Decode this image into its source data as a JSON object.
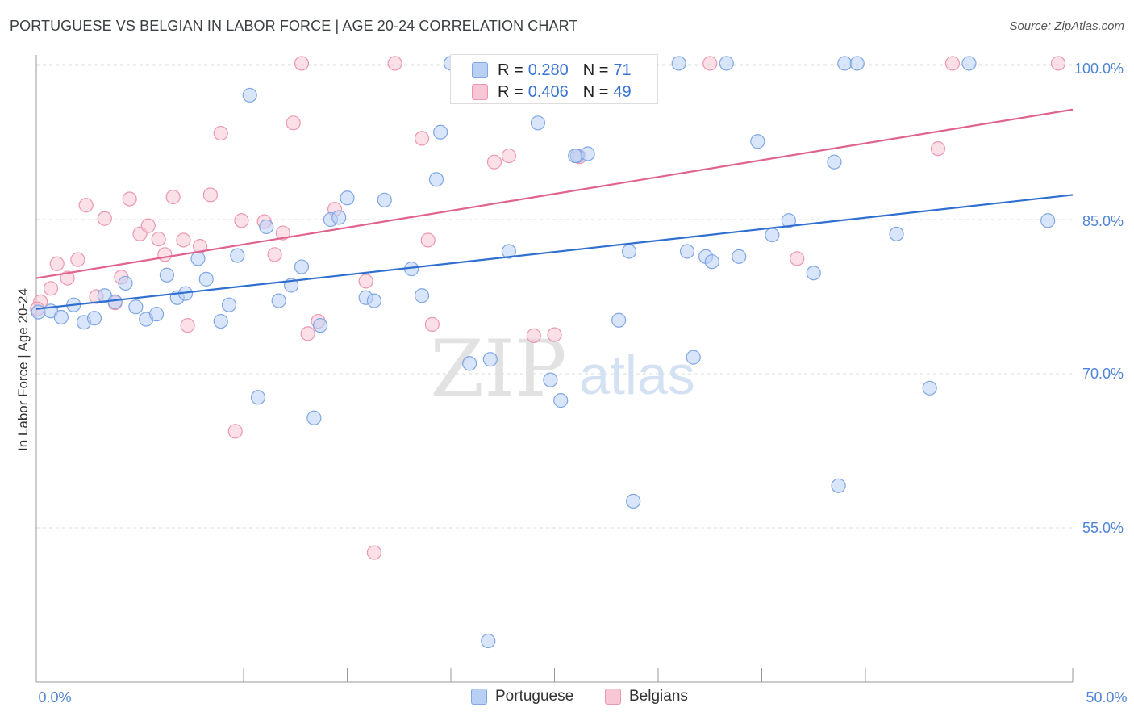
{
  "header": {
    "title": "PORTUGUESE VS BELGIAN IN LABOR FORCE | AGE 20-24 CORRELATION CHART",
    "source": "Source: ZipAtlas.com"
  },
  "watermark": {
    "zip": "ZIP",
    "atlas": "atlas"
  },
  "legend": {
    "portuguese": {
      "r_label": "R =",
      "r_value": "0.280",
      "n_label": "N =",
      "n_value": "71"
    },
    "belgians": {
      "r_label": "R =",
      "r_value": "0.406",
      "n_label": "N =",
      "n_value": "49"
    }
  },
  "bottom_legend": {
    "portuguese": "Portuguese",
    "belgians": "Belgians"
  },
  "colors": {
    "blue_fill": "#b9d0f5",
    "blue_stroke": "#7fa7e3",
    "blue_line": "#2f6fd0",
    "pink_fill": "#f8c6d5",
    "pink_stroke": "#ec97b1",
    "pink_line": "#e0628e",
    "axis_text": "#4f83d6",
    "grid": "#dddddd"
  },
  "chart_data": {
    "type": "scatter",
    "title": "PORTUGUESE VS BELGIAN IN LABOR FORCE | AGE 20-24 CORRELATION CHART",
    "xlabel": "",
    "ylabel": "In Labor Force | Age 20-24",
    "xlim": [
      0,
      50
    ],
    "ylim": [
      40,
      102.5
    ],
    "x_tick_labels": {
      "left": "0.0%",
      "right": "50.0%"
    },
    "y_ticks": [
      {
        "value": 55,
        "label": "55.0%"
      },
      {
        "value": 70,
        "label": "70.0%"
      },
      {
        "value": 85,
        "label": "85.0%"
      },
      {
        "value": 100,
        "label": "100.0%"
      }
    ],
    "series": [
      {
        "name": "Portuguese",
        "color": "#7fa7e3",
        "trend": {
          "x": [
            0,
            50
          ],
          "y": [
            76.3,
            87.4
          ]
        },
        "points": [
          [
            0.1,
            76.0
          ],
          [
            0.7,
            76.1
          ],
          [
            1.2,
            75.5
          ],
          [
            1.8,
            76.7
          ],
          [
            2.3,
            75.0
          ],
          [
            2.8,
            75.4
          ],
          [
            3.3,
            77.6
          ],
          [
            3.8,
            77.0
          ],
          [
            4.3,
            78.8
          ],
          [
            4.8,
            76.5
          ],
          [
            5.3,
            75.3
          ],
          [
            5.8,
            75.8
          ],
          [
            6.3,
            79.6
          ],
          [
            6.8,
            77.4
          ],
          [
            7.2,
            77.8
          ],
          [
            7.8,
            81.2
          ],
          [
            8.2,
            79.2
          ],
          [
            8.9,
            75.1
          ],
          [
            9.3,
            76.7
          ],
          [
            9.7,
            81.5
          ],
          [
            10.3,
            97.1
          ],
          [
            10.7,
            67.7
          ],
          [
            11.1,
            84.3
          ],
          [
            11.7,
            77.1
          ],
          [
            12.3,
            78.6
          ],
          [
            12.8,
            80.4
          ],
          [
            13.4,
            65.7
          ],
          [
            13.7,
            74.7
          ],
          [
            14.2,
            85.0
          ],
          [
            14.6,
            85.2
          ],
          [
            15.0,
            87.1
          ],
          [
            15.9,
            77.4
          ],
          [
            16.3,
            77.1
          ],
          [
            16.8,
            86.9
          ],
          [
            18.1,
            80.2
          ],
          [
            18.6,
            77.6
          ],
          [
            19.3,
            88.9
          ],
          [
            19.5,
            93.5
          ],
          [
            20.0,
            100.2
          ],
          [
            20.9,
            71.0
          ],
          [
            21.9,
            71.4
          ],
          [
            22.8,
            81.9
          ],
          [
            24.2,
            94.4
          ],
          [
            24.8,
            69.4
          ],
          [
            25.3,
            67.4
          ],
          [
            26.1,
            91.2
          ],
          [
            26.6,
            91.4
          ],
          [
            28.1,
            75.2
          ],
          [
            28.6,
            81.9
          ],
          [
            28.8,
            57.6
          ],
          [
            31.0,
            100.2
          ],
          [
            31.4,
            81.9
          ],
          [
            31.7,
            71.6
          ],
          [
            32.3,
            81.4
          ],
          [
            32.6,
            80.9
          ],
          [
            33.3,
            100.2
          ],
          [
            33.9,
            81.4
          ],
          [
            34.8,
            92.6
          ],
          [
            35.5,
            83.5
          ],
          [
            36.3,
            84.9
          ],
          [
            37.5,
            79.8
          ],
          [
            38.5,
            90.6
          ],
          [
            38.7,
            59.1
          ],
          [
            39.0,
            100.2
          ],
          [
            39.6,
            100.2
          ],
          [
            41.5,
            83.6
          ],
          [
            43.1,
            68.6
          ],
          [
            45.0,
            100.2
          ],
          [
            48.8,
            84.9
          ],
          [
            21.8,
            44.0
          ],
          [
            26.0,
            91.2
          ]
        ]
      },
      {
        "name": "Belgians",
        "color": "#ec97b1",
        "trend": {
          "x": [
            0,
            50
          ],
          "y": [
            79.3,
            95.7
          ]
        },
        "points": [
          [
            0.2,
            77.0
          ],
          [
            0.7,
            78.3
          ],
          [
            1.0,
            80.7
          ],
          [
            1.5,
            79.3
          ],
          [
            2.0,
            81.1
          ],
          [
            2.4,
            86.4
          ],
          [
            2.9,
            77.5
          ],
          [
            3.3,
            85.1
          ],
          [
            3.8,
            76.9
          ],
          [
            4.1,
            79.4
          ],
          [
            4.5,
            87.0
          ],
          [
            5.0,
            83.6
          ],
          [
            5.4,
            84.4
          ],
          [
            5.9,
            83.1
          ],
          [
            6.2,
            81.6
          ],
          [
            6.6,
            87.2
          ],
          [
            7.1,
            83.0
          ],
          [
            7.3,
            74.7
          ],
          [
            7.9,
            82.4
          ],
          [
            8.4,
            87.4
          ],
          [
            8.9,
            93.4
          ],
          [
            9.6,
            64.4
          ],
          [
            9.9,
            84.9
          ],
          [
            11.0,
            84.8
          ],
          [
            11.5,
            81.6
          ],
          [
            11.9,
            83.7
          ],
          [
            12.4,
            94.4
          ],
          [
            12.8,
            100.2
          ],
          [
            13.1,
            73.9
          ],
          [
            13.6,
            75.1
          ],
          [
            14.4,
            86.0
          ],
          [
            15.9,
            79.0
          ],
          [
            16.3,
            52.6
          ],
          [
            17.3,
            100.2
          ],
          [
            18.6,
            92.9
          ],
          [
            18.9,
            83.0
          ],
          [
            19.1,
            74.8
          ],
          [
            22.1,
            90.6
          ],
          [
            22.8,
            91.2
          ],
          [
            24.0,
            73.7
          ],
          [
            25.0,
            73.8
          ],
          [
            26.2,
            91.1
          ],
          [
            27.2,
            100.2
          ],
          [
            32.5,
            100.2
          ],
          [
            36.7,
            81.2
          ],
          [
            43.5,
            91.9
          ],
          [
            44.2,
            100.2
          ],
          [
            49.3,
            100.2
          ],
          [
            0.05,
            76.3
          ]
        ]
      }
    ]
  }
}
